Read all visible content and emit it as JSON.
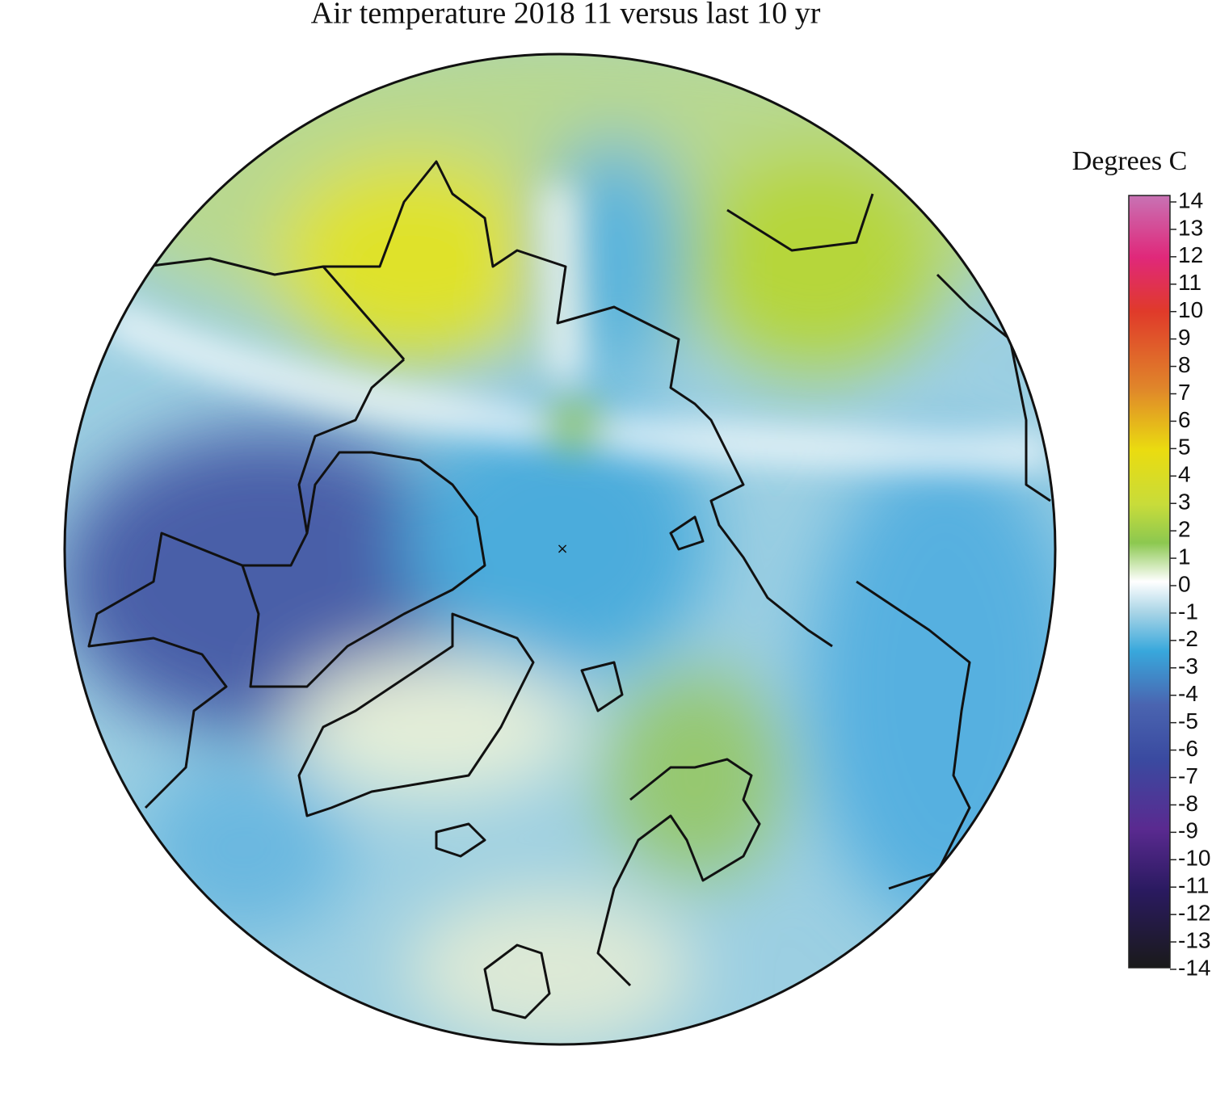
{
  "title": "Air temperature 2018 11 versus last 10 yr",
  "colorbar": {
    "label": "Degrees C",
    "ticks": [
      14,
      13,
      12,
      11,
      10,
      9,
      8,
      7,
      6,
      5,
      4,
      3,
      2,
      1,
      0,
      -1,
      -2,
      -3,
      -4,
      -5,
      -6,
      -7,
      -8,
      -9,
      -10,
      -11,
      -12,
      -13,
      -14
    ]
  }
}
